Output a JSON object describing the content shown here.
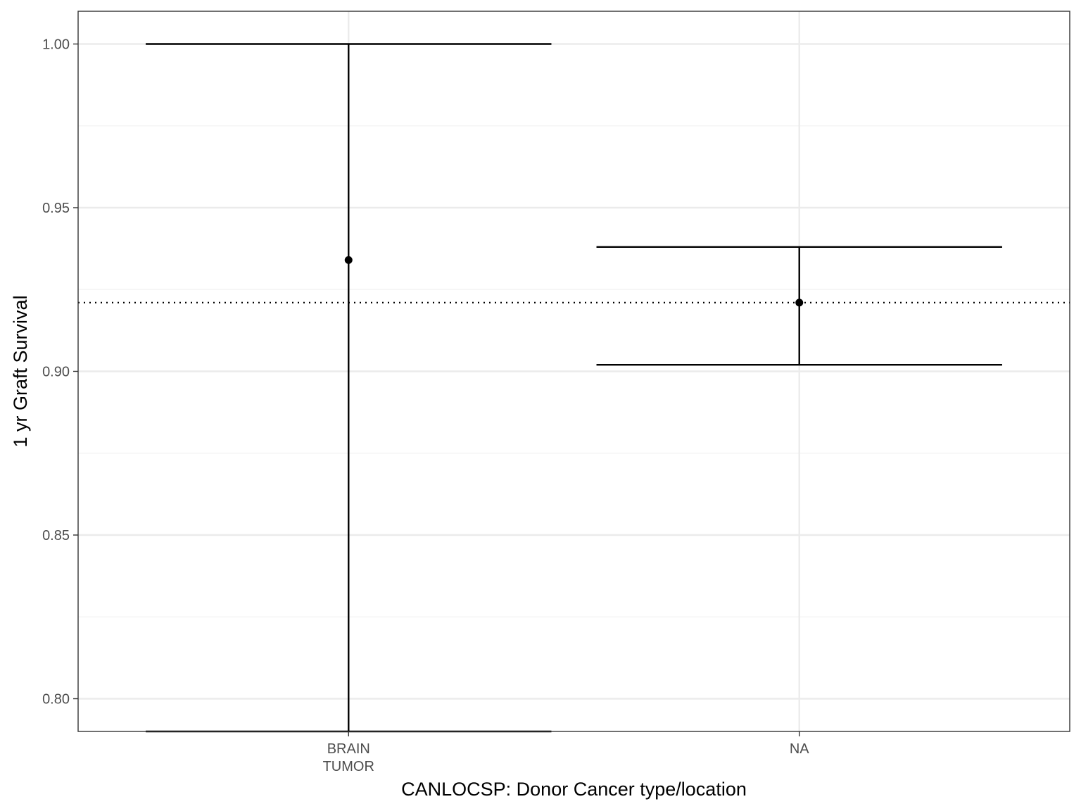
{
  "chart_data": {
    "type": "errorbar",
    "title": "",
    "xlabel": "CANLOCSP: Donor Cancer type/location",
    "ylabel": "1 yr Graft Survival",
    "ylim": [
      0.79,
      1.01
    ],
    "y_ticks": [
      0.8,
      0.85,
      0.9,
      0.95,
      1.0
    ],
    "y_tick_labels": [
      "0.80",
      "0.85",
      "0.90",
      "0.95",
      "1.00"
    ],
    "categories": [
      {
        "label_lines": [
          "BRAIN",
          "TUMOR"
        ]
      },
      {
        "label_lines": [
          "NA"
        ]
      }
    ],
    "points": [
      {
        "estimate": 0.934,
        "lower": 0.79,
        "upper": 1.0
      },
      {
        "estimate": 0.921,
        "lower": 0.902,
        "upper": 0.938
      }
    ],
    "reference_line": {
      "y": 0.921,
      "style": "dotted"
    },
    "grid": true,
    "legend": "none",
    "colors": {
      "mark": "#000000",
      "grid": "#ebebeb",
      "panel_border": "#333333"
    }
  }
}
